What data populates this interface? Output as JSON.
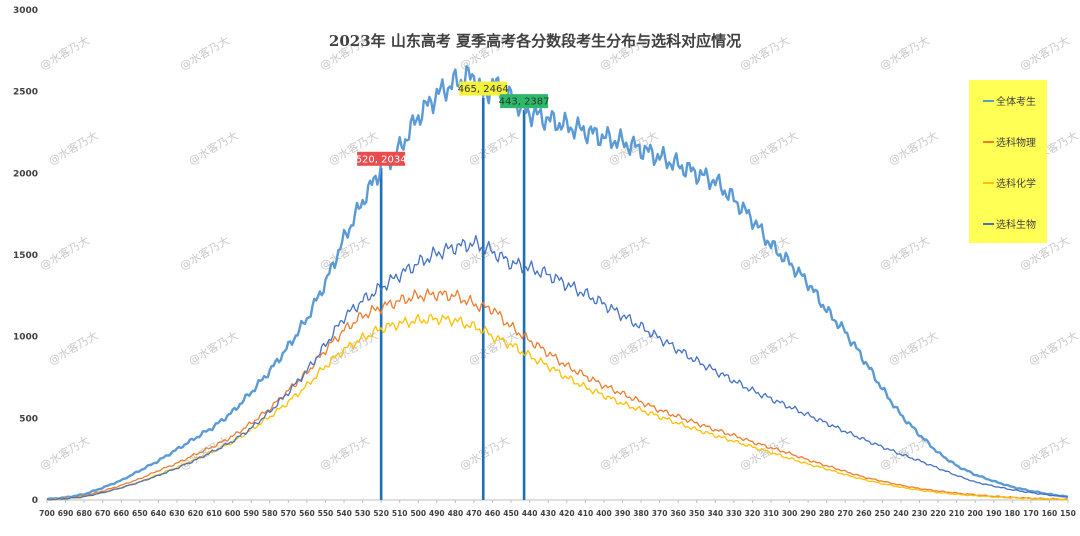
{
  "chart_data": {
    "type": "line",
    "title": "2023年 山东高考 夏季高考各分数段考生分布与选科对应情况",
    "xlabel": "",
    "ylabel": "",
    "x_axis_reversed": true,
    "xlim": [
      700,
      150
    ],
    "ylim": [
      0,
      3000
    ],
    "y_ticks": [
      "0",
      "500",
      "1000",
      "1500",
      "2000",
      "2500",
      "3000"
    ],
    "x_tick_step": 10,
    "grid": false,
    "legend_position": "right",
    "series": [
      {
        "name": "全体考生",
        "color": "#5b9bd5",
        "points": [
          [
            700,
            5
          ],
          [
            690,
            15
          ],
          [
            680,
            35
          ],
          [
            670,
            75
          ],
          [
            660,
            120
          ],
          [
            650,
            180
          ],
          [
            640,
            240
          ],
          [
            630,
            310
          ],
          [
            620,
            380
          ],
          [
            610,
            450
          ],
          [
            600,
            540
          ],
          [
            590,
            660
          ],
          [
            580,
            790
          ],
          [
            570,
            940
          ],
          [
            560,
            1110
          ],
          [
            550,
            1330
          ],
          [
            540,
            1600
          ],
          [
            530,
            1830
          ],
          [
            520,
            2034
          ],
          [
            510,
            2150
          ],
          [
            500,
            2350
          ],
          [
            490,
            2480
          ],
          [
            480,
            2560
          ],
          [
            470,
            2600
          ],
          [
            465,
            2464
          ],
          [
            460,
            2550
          ],
          [
            450,
            2450
          ],
          [
            443,
            2387
          ],
          [
            430,
            2330
          ],
          [
            420,
            2290
          ],
          [
            410,
            2260
          ],
          [
            400,
            2220
          ],
          [
            390,
            2190
          ],
          [
            380,
            2150
          ],
          [
            370,
            2100
          ],
          [
            360,
            2050
          ],
          [
            350,
            2000
          ],
          [
            340,
            1950
          ],
          [
            330,
            1840
          ],
          [
            320,
            1720
          ],
          [
            310,
            1560
          ],
          [
            300,
            1450
          ],
          [
            290,
            1330
          ],
          [
            280,
            1160
          ],
          [
            270,
            1030
          ],
          [
            260,
            860
          ],
          [
            250,
            680
          ],
          [
            240,
            520
          ],
          [
            230,
            400
          ],
          [
            220,
            290
          ],
          [
            210,
            210
          ],
          [
            200,
            155
          ],
          [
            190,
            115
          ],
          [
            180,
            80
          ],
          [
            170,
            55
          ],
          [
            160,
            35
          ],
          [
            150,
            20
          ]
        ]
      },
      {
        "name": "选科物理",
        "color": "#ed7d31",
        "points": [
          [
            700,
            3
          ],
          [
            690,
            10
          ],
          [
            680,
            25
          ],
          [
            670,
            55
          ],
          [
            660,
            90
          ],
          [
            650,
            130
          ],
          [
            640,
            180
          ],
          [
            630,
            225
          ],
          [
            620,
            280
          ],
          [
            610,
            330
          ],
          [
            600,
            390
          ],
          [
            590,
            470
          ],
          [
            580,
            560
          ],
          [
            570,
            670
          ],
          [
            560,
            780
          ],
          [
            550,
            920
          ],
          [
            540,
            1040
          ],
          [
            530,
            1130
          ],
          [
            520,
            1180
          ],
          [
            510,
            1220
          ],
          [
            500,
            1250
          ],
          [
            490,
            1260
          ],
          [
            480,
            1250
          ],
          [
            470,
            1200
          ],
          [
            465,
            1180
          ],
          [
            460,
            1170
          ],
          [
            450,
            1060
          ],
          [
            443,
            1000
          ],
          [
            430,
            900
          ],
          [
            420,
            820
          ],
          [
            410,
            760
          ],
          [
            400,
            700
          ],
          [
            390,
            650
          ],
          [
            380,
            600
          ],
          [
            370,
            550
          ],
          [
            360,
            510
          ],
          [
            350,
            470
          ],
          [
            340,
            430
          ],
          [
            330,
            395
          ],
          [
            320,
            355
          ],
          [
            310,
            320
          ],
          [
            300,
            285
          ],
          [
            290,
            245
          ],
          [
            280,
            210
          ],
          [
            270,
            175
          ],
          [
            260,
            140
          ],
          [
            250,
            115
          ],
          [
            240,
            90
          ],
          [
            230,
            70
          ],
          [
            220,
            55
          ],
          [
            210,
            42
          ],
          [
            200,
            32
          ],
          [
            190,
            23
          ],
          [
            180,
            16
          ],
          [
            170,
            11
          ],
          [
            160,
            7
          ],
          [
            150,
            4
          ]
        ]
      },
      {
        "name": "选科化学",
        "color": "#ffc000",
        "points": [
          [
            700,
            2
          ],
          [
            690,
            8
          ],
          [
            680,
            20
          ],
          [
            670,
            45
          ],
          [
            660,
            75
          ],
          [
            650,
            110
          ],
          [
            640,
            155
          ],
          [
            630,
            200
          ],
          [
            620,
            250
          ],
          [
            610,
            300
          ],
          [
            600,
            355
          ],
          [
            590,
            430
          ],
          [
            580,
            510
          ],
          [
            570,
            600
          ],
          [
            560,
            700
          ],
          [
            550,
            820
          ],
          [
            540,
            920
          ],
          [
            530,
            990
          ],
          [
            520,
            1050
          ],
          [
            510,
            1080
          ],
          [
            500,
            1100
          ],
          [
            490,
            1110
          ],
          [
            480,
            1100
          ],
          [
            470,
            1060
          ],
          [
            465,
            1040
          ],
          [
            460,
            1000
          ],
          [
            450,
            950
          ],
          [
            443,
            900
          ],
          [
            430,
            820
          ],
          [
            420,
            750
          ],
          [
            410,
            690
          ],
          [
            400,
            640
          ],
          [
            390,
            590
          ],
          [
            380,
            550
          ],
          [
            370,
            510
          ],
          [
            360,
            470
          ],
          [
            350,
            430
          ],
          [
            340,
            395
          ],
          [
            330,
            360
          ],
          [
            320,
            325
          ],
          [
            310,
            290
          ],
          [
            300,
            255
          ],
          [
            290,
            220
          ],
          [
            280,
            190
          ],
          [
            270,
            155
          ],
          [
            260,
            125
          ],
          [
            250,
            100
          ],
          [
            240,
            78
          ],
          [
            230,
            60
          ],
          [
            220,
            46
          ],
          [
            210,
            35
          ],
          [
            200,
            26
          ],
          [
            190,
            19
          ],
          [
            180,
            13
          ],
          [
            170,
            9
          ],
          [
            160,
            6
          ],
          [
            150,
            3
          ]
        ]
      },
      {
        "name": "选科生物",
        "color": "#4472c4",
        "points": [
          [
            700,
            2
          ],
          [
            690,
            8
          ],
          [
            680,
            20
          ],
          [
            670,
            45
          ],
          [
            660,
            75
          ],
          [
            650,
            110
          ],
          [
            640,
            150
          ],
          [
            630,
            195
          ],
          [
            620,
            245
          ],
          [
            610,
            300
          ],
          [
            600,
            360
          ],
          [
            590,
            440
          ],
          [
            580,
            540
          ],
          [
            570,
            660
          ],
          [
            560,
            790
          ],
          [
            550,
            950
          ],
          [
            540,
            1120
          ],
          [
            530,
            1220
          ],
          [
            520,
            1300
          ],
          [
            510,
            1380
          ],
          [
            500,
            1450
          ],
          [
            490,
            1510
          ],
          [
            480,
            1550
          ],
          [
            470,
            1570
          ],
          [
            465,
            1550
          ],
          [
            460,
            1520
          ],
          [
            450,
            1450
          ],
          [
            443,
            1430
          ],
          [
            430,
            1380
          ],
          [
            420,
            1320
          ],
          [
            410,
            1260
          ],
          [
            400,
            1200
          ],
          [
            390,
            1130
          ],
          [
            380,
            1060
          ],
          [
            370,
            990
          ],
          [
            360,
            920
          ],
          [
            350,
            850
          ],
          [
            340,
            790
          ],
          [
            330,
            730
          ],
          [
            320,
            670
          ],
          [
            310,
            620
          ],
          [
            300,
            570
          ],
          [
            290,
            520
          ],
          [
            280,
            470
          ],
          [
            270,
            420
          ],
          [
            260,
            370
          ],
          [
            250,
            325
          ],
          [
            240,
            280
          ],
          [
            230,
            240
          ],
          [
            220,
            195
          ],
          [
            210,
            150
          ],
          [
            200,
            110
          ],
          [
            190,
            85
          ],
          [
            180,
            62
          ],
          [
            170,
            45
          ],
          [
            160,
            30
          ],
          [
            150,
            18
          ]
        ]
      }
    ],
    "vertical_lines": [
      520,
      465,
      443
    ],
    "annotations": [
      {
        "text": "520, 2034",
        "x": 520,
        "y": 2034,
        "bg": "#e84c4c",
        "fg": "#ffffff"
      },
      {
        "text": "465, 2464",
        "x": 465,
        "y": 2464,
        "bg": "#f2f23a",
        "fg": "#333333"
      },
      {
        "text": "443, 2387",
        "x": 443,
        "y": 2387,
        "bg": "#2fb86c",
        "fg": "#1a3d28"
      }
    ],
    "legend_bg": "#ffff55"
  },
  "watermark": "@水客乃大"
}
